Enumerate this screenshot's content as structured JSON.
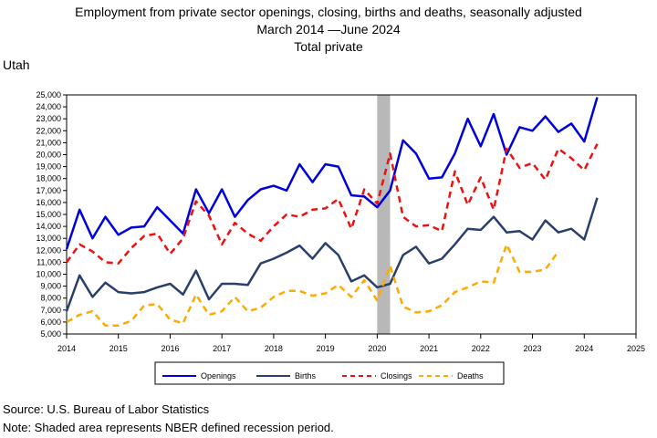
{
  "chart_data": {
    "type": "line",
    "title_lines": [
      "Employment from private sector openings, closing, births and deaths, seasonally adjusted",
      "March 2014  —June 2024",
      "Total private"
    ],
    "panel_label": "Utah",
    "xlim": [
      2014,
      2025
    ],
    "ylim": [
      5000,
      25000
    ],
    "x_ticks": [
      "2014",
      "2015",
      "2016",
      "2017",
      "2018",
      "2019",
      "2020",
      "2021",
      "2022",
      "2023",
      "2024",
      "2025"
    ],
    "y_ticks": [
      "5,000",
      "6,000",
      "7,000",
      "8,000",
      "9,000",
      "10,000",
      "11,000",
      "12,000",
      "13,000",
      "14,000",
      "15,000",
      "16,000",
      "17,000",
      "18,000",
      "19,000",
      "20,000",
      "21,000",
      "22,000",
      "23,000",
      "24,000",
      "25,000"
    ],
    "recession": [
      2020.0,
      2020.25
    ],
    "grid": false,
    "legend_placement": "bottom",
    "series": [
      {
        "name": "Openings",
        "color": "#0000dd",
        "dash": "solid",
        "x": [
          2014.0,
          2014.25,
          2014.5,
          2014.75,
          2015.0,
          2015.25,
          2015.5,
          2015.75,
          2016.0,
          2016.25,
          2016.5,
          2016.75,
          2017.0,
          2017.25,
          2017.5,
          2017.75,
          2018.0,
          2018.25,
          2018.5,
          2018.75,
          2019.0,
          2019.25,
          2019.5,
          2019.75,
          2020.0,
          2020.25,
          2020.5,
          2020.75,
          2021.0,
          2021.25,
          2021.5,
          2021.75,
          2022.0,
          2022.25,
          2022.5,
          2022.75,
          2023.0,
          2023.25,
          2023.5,
          2023.75,
          2024.0,
          2024.25
        ],
        "y": [
          12100,
          15400,
          13000,
          14800,
          13300,
          13900,
          14000,
          15600,
          14500,
          13400,
          17100,
          15100,
          17100,
          14800,
          16200,
          17100,
          17400,
          17000,
          19200,
          17700,
          19200,
          19000,
          16600,
          16500,
          15600,
          17000,
          21200,
          20100,
          18000,
          18100,
          20100,
          23000,
          20700,
          23400,
          20000,
          22300,
          22000,
          23200,
          21900,
          22600,
          21100,
          24800
        ]
      },
      {
        "name": "Births",
        "color": "#2a3f6b",
        "dash": "solid",
        "x": [
          2014.0,
          2014.25,
          2014.5,
          2014.75,
          2015.0,
          2015.25,
          2015.5,
          2015.75,
          2016.0,
          2016.25,
          2016.5,
          2016.75,
          2017.0,
          2017.25,
          2017.5,
          2017.75,
          2018.0,
          2018.25,
          2018.5,
          2018.75,
          2019.0,
          2019.25,
          2019.5,
          2019.75,
          2020.0,
          2020.25,
          2020.5,
          2020.75,
          2021.0,
          2021.25,
          2021.5,
          2021.75,
          2022.0,
          2022.25,
          2022.5,
          2022.75,
          2023.0,
          2023.25,
          2023.5,
          2023.75,
          2024.0,
          2024.25
        ],
        "y": [
          6900,
          9900,
          8100,
          9300,
          8500,
          8400,
          8500,
          8900,
          9200,
          8300,
          10300,
          7900,
          9200,
          9200,
          9100,
          10900,
          11300,
          11800,
          12400,
          11300,
          12600,
          11600,
          9400,
          9900,
          8900,
          9200,
          11600,
          12300,
          10900,
          11300,
          12500,
          13800,
          13700,
          14800,
          13500,
          13600,
          12900,
          14500,
          13500,
          13800,
          12900,
          16400
        ]
      },
      {
        "name": "Closings",
        "color": "#ee1111",
        "dash": "7,5",
        "x": [
          2014.0,
          2014.25,
          2014.5,
          2014.75,
          2015.0,
          2015.25,
          2015.5,
          2015.75,
          2016.0,
          2016.25,
          2016.5,
          2016.75,
          2017.0,
          2017.25,
          2017.5,
          2017.75,
          2018.0,
          2018.25,
          2018.5,
          2018.75,
          2019.0,
          2019.25,
          2019.5,
          2019.75,
          2020.0,
          2020.25,
          2020.5,
          2020.75,
          2021.0,
          2021.25,
          2021.5,
          2021.75,
          2022.0,
          2022.25,
          2022.5,
          2022.75,
          2023.0,
          2023.25,
          2023.5,
          2023.75,
          2024.0,
          2024.25
        ],
        "y": [
          11000,
          12500,
          11900,
          11000,
          10900,
          12200,
          13200,
          13400,
          11700,
          13000,
          16100,
          14900,
          12500,
          14300,
          13400,
          12800,
          14000,
          15000,
          14800,
          15400,
          15500,
          16300,
          13800,
          17100,
          15900,
          20100,
          14800,
          14000,
          14100,
          13600,
          18600,
          15800,
          18100,
          15400,
          20500,
          18900,
          19300,
          17900,
          20500,
          19700,
          18700,
          20900
        ]
      },
      {
        "name": "Deaths",
        "color": "#ffaa00",
        "dash": "7,5",
        "x": [
          2014.0,
          2014.25,
          2014.5,
          2014.75,
          2015.0,
          2015.25,
          2015.5,
          2015.75,
          2016.0,
          2016.25,
          2016.5,
          2016.75,
          2017.0,
          2017.25,
          2017.5,
          2017.75,
          2018.0,
          2018.25,
          2018.5,
          2018.75,
          2019.0,
          2019.25,
          2019.5,
          2019.75,
          2020.0,
          2020.25,
          2020.5,
          2020.75,
          2021.0,
          2021.25,
          2021.5,
          2021.75,
          2022.0,
          2022.25,
          2022.5,
          2022.75,
          2023.0,
          2023.25,
          2023.5
        ],
        "y": [
          6000,
          6600,
          6900,
          5700,
          5700,
          6100,
          7400,
          7500,
          6200,
          5900,
          8300,
          6600,
          6900,
          8100,
          6900,
          7200,
          8100,
          8600,
          8600,
          8200,
          8400,
          9100,
          8100,
          9500,
          7800,
          10700,
          7300,
          6800,
          6900,
          7400,
          8500,
          8900,
          9400,
          9300,
          12500,
          10200,
          10200,
          10400,
          11900
        ]
      }
    ]
  },
  "footer": {
    "source": "Source: U.S. Bureau of Labor Statistics",
    "note": "Note: Shaded area represents NBER defined recession period."
  }
}
